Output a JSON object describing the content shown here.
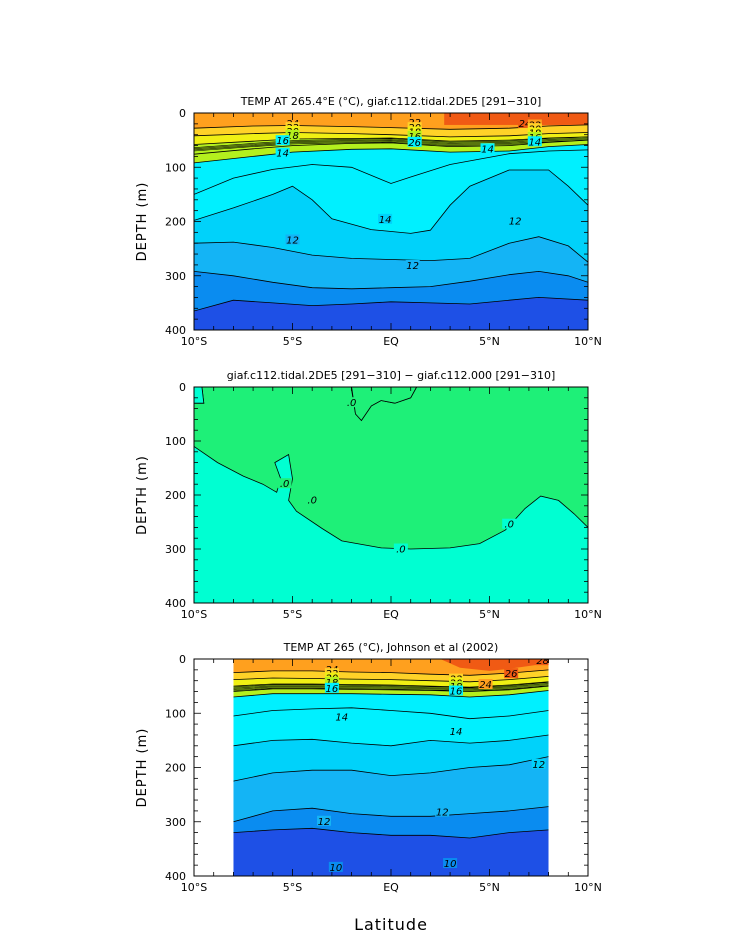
{
  "chart_data": [
    {
      "type": "heatmap",
      "title": "TEMP AT 265.4°E (°C), giaf.c112.tidal.2DE5 [291−310]",
      "ylabel": "DEPTH (m)",
      "xlabel": "",
      "x_ticks": [
        "10°S",
        "5°S",
        "EQ",
        "5°N",
        "10°N"
      ],
      "y_ticks": [
        "0",
        "100",
        "200",
        "300",
        "400"
      ],
      "x_range": [
        -10,
        10
      ],
      "y_range": [
        0,
        400
      ],
      "contour_labels": [
        "24",
        "22",
        "20",
        "18",
        "16",
        "14",
        "14",
        "14",
        "12",
        "12",
        "12",
        "22",
        "20",
        "18",
        "16",
        "26",
        "24",
        "22",
        "20",
        "18",
        "16",
        "14"
      ],
      "colors": [
        "#1e50e6",
        "#0a8cf0",
        "#14b4f5",
        "#00d2fa",
        "#00f0ff",
        "#b4f01e",
        "#f0f014",
        "#ffd228",
        "#ffa01e",
        "#f05a14"
      ]
    },
    {
      "type": "heatmap",
      "title": "giaf.c112.tidal.2DE5 [291−310] − giaf.c112.000 [291−310]",
      "ylabel": "DEPTH (m)",
      "xlabel": "",
      "x_ticks": [
        "10°S",
        "5°S",
        "EQ",
        "5°N",
        "10°N"
      ],
      "y_ticks": [
        "0",
        "100",
        "200",
        "300",
        "400"
      ],
      "x_range": [
        -10,
        10
      ],
      "y_range": [
        0,
        400
      ],
      "contour_labels": [
        ".0",
        ".0",
        ".0",
        ".0",
        ".0"
      ],
      "colors": [
        "#00ffd2",
        "#1ef078"
      ]
    },
    {
      "type": "heatmap",
      "title": "TEMP AT 265 (°C), Johnson et al (2002)",
      "ylabel": "DEPTH (m)",
      "xlabel": "Latitude",
      "x_ticks": [
        "10°S",
        "5°S",
        "EQ",
        "5°N",
        "10°N"
      ],
      "y_ticks": [
        "0",
        "100",
        "200",
        "300",
        "400"
      ],
      "x_range": [
        -10,
        10
      ],
      "y_range": [
        0,
        400
      ],
      "data_x_range": [
        -8,
        8
      ],
      "contour_labels": [
        "24",
        "22",
        "20",
        "18",
        "16",
        "14",
        "14",
        "12",
        "12",
        "12",
        "10",
        "10",
        "28",
        "26",
        "24",
        "22",
        "20",
        "18",
        "16"
      ],
      "colors": [
        "#1e50e6",
        "#0a8cf0",
        "#14b4f5",
        "#00d2fa",
        "#00f0ff",
        "#b4f01e",
        "#f0f014",
        "#ffd228",
        "#ffa01e",
        "#f05a14"
      ]
    }
  ]
}
